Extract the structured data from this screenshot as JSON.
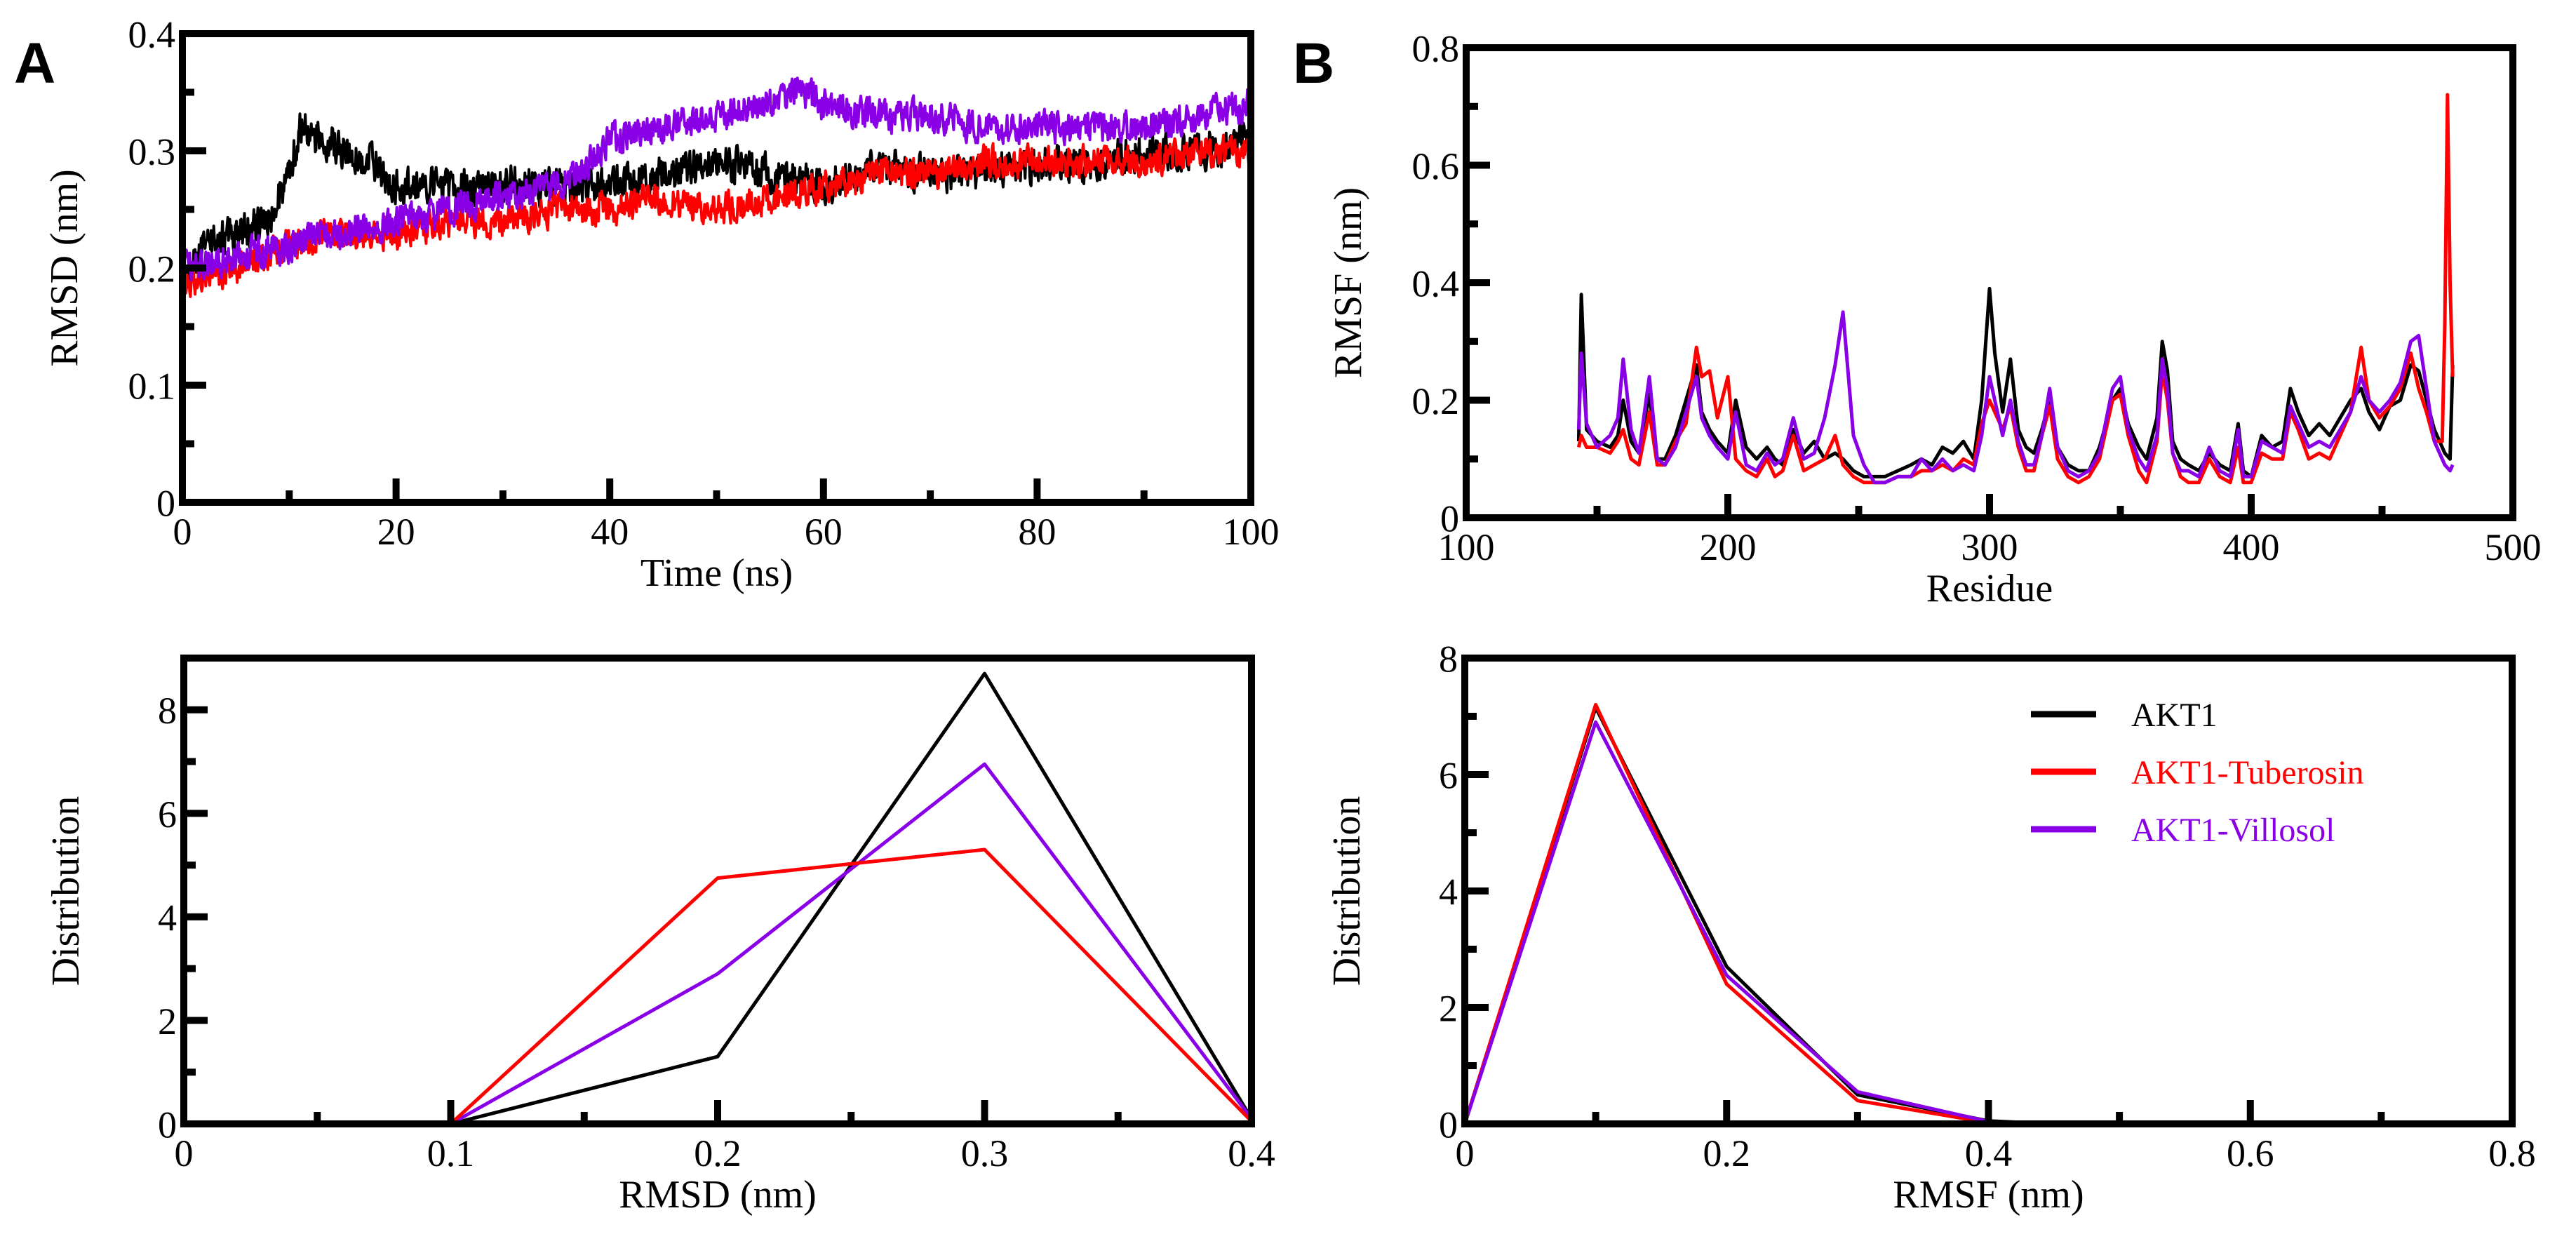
{
  "panel_labels": {
    "a": "A",
    "b": "B"
  },
  "colors": {
    "akt1": "#000000",
    "tuberosin": "#ff0000",
    "villosol": "#8a00e6"
  },
  "legend": {
    "placement": "top-right of lower-right panel",
    "entries": [
      "AKT1",
      "AKT1-Tuberosin",
      "AKT1-Villosol"
    ]
  },
  "chart_data": [
    {
      "id": "rmsd_time",
      "type": "line",
      "title": "",
      "xlabel": "Time (ns)",
      "ylabel": "RMSD (nm)",
      "xlim": [
        0,
        100
      ],
      "ylim": [
        0,
        0.4
      ],
      "xticks": [
        0,
        20,
        40,
        60,
        80,
        100
      ],
      "xtick_labels": [
        "0",
        "20",
        "40",
        "60",
        "80",
        "100"
      ],
      "xminor": [
        10,
        30,
        50,
        70,
        90
      ],
      "yticks": [
        0,
        0.1,
        0.2,
        0.3,
        0.4
      ],
      "ytick_labels": [
        "0",
        "0.1",
        "0.2",
        "0.3",
        "0.4"
      ],
      "yminor": [
        0.05,
        0.15,
        0.25,
        0.35
      ],
      "noise": true,
      "series": [
        {
          "name": "AKT1",
          "x": [
            0,
            2,
            5,
            8,
            10,
            11,
            13,
            15,
            18,
            20,
            22,
            25,
            30,
            35,
            38,
            40,
            45,
            50,
            55,
            60,
            65,
            70,
            75,
            80,
            85,
            90,
            95,
            100
          ],
          "y": [
            0.19,
            0.22,
            0.23,
            0.24,
            0.28,
            0.32,
            0.31,
            0.3,
            0.29,
            0.27,
            0.27,
            0.27,
            0.27,
            0.27,
            0.27,
            0.27,
            0.28,
            0.29,
            0.28,
            0.27,
            0.29,
            0.28,
            0.28,
            0.29,
            0.29,
            0.3,
            0.3,
            0.31
          ],
          "amp": 0.014
        },
        {
          "name": "AKT1-Tuberosin",
          "x": [
            0,
            5,
            10,
            15,
            20,
            25,
            30,
            35,
            40,
            45,
            50,
            55,
            60,
            65,
            70,
            75,
            80,
            85,
            90,
            95,
            100
          ],
          "y": [
            0.19,
            0.2,
            0.22,
            0.23,
            0.23,
            0.24,
            0.24,
            0.25,
            0.25,
            0.26,
            0.25,
            0.26,
            0.27,
            0.28,
            0.28,
            0.29,
            0.29,
            0.29,
            0.29,
            0.3,
            0.3
          ],
          "amp": 0.012
        },
        {
          "name": "AKT1-Villosol",
          "x": [
            0,
            5,
            10,
            15,
            20,
            25,
            30,
            35,
            38,
            40,
            45,
            50,
            55,
            58,
            60,
            65,
            70,
            75,
            80,
            85,
            90,
            95,
            100
          ],
          "y": [
            0.2,
            0.21,
            0.22,
            0.23,
            0.24,
            0.25,
            0.26,
            0.27,
            0.29,
            0.31,
            0.32,
            0.33,
            0.34,
            0.35,
            0.34,
            0.33,
            0.33,
            0.32,
            0.32,
            0.32,
            0.32,
            0.33,
            0.34
          ],
          "amp": 0.012
        }
      ]
    },
    {
      "id": "rmsf_residue",
      "type": "line",
      "title": "",
      "xlabel": "Residue",
      "ylabel": "RMSF (nm)",
      "xlim": [
        100,
        500
      ],
      "ylim": [
        0,
        0.8
      ],
      "xticks": [
        100,
        200,
        300,
        400,
        500
      ],
      "xtick_labels": [
        "100",
        "200",
        "300",
        "400",
        "500"
      ],
      "xminor": [
        150,
        250,
        350,
        450
      ],
      "yticks": [
        0,
        0.2,
        0.4,
        0.6,
        0.8
      ],
      "ytick_labels": [
        "0",
        "0.2",
        "0.4",
        "0.6",
        "0.8"
      ],
      "yminor": [
        0.1,
        0.3,
        0.5,
        0.7
      ],
      "noise": false,
      "series": [
        {
          "name": "AKT1",
          "x": [
            143,
            144,
            146,
            150,
            155,
            158,
            160,
            163,
            166,
            170,
            173,
            176,
            180,
            184,
            188,
            190,
            193,
            196,
            200,
            203,
            207,
            211,
            215,
            218,
            221,
            225,
            229,
            233,
            237,
            241,
            244,
            248,
            252,
            256,
            260,
            265,
            270,
            274,
            278,
            282,
            286,
            290,
            294,
            297,
            300,
            302,
            305,
            308,
            311,
            314,
            317,
            320,
            323,
            326,
            330,
            334,
            338,
            342,
            347,
            350,
            353,
            357,
            360,
            364,
            366,
            368,
            370,
            373,
            376,
            380,
            384,
            388,
            392,
            395,
            397,
            400,
            404,
            408,
            412,
            415,
            418,
            422,
            426,
            430,
            434,
            438,
            442,
            445,
            449,
            453,
            457,
            461,
            464,
            467,
            470,
            473,
            474,
            476,
            477
          ],
          "y": [
            0.13,
            0.38,
            0.15,
            0.13,
            0.12,
            0.14,
            0.2,
            0.13,
            0.11,
            0.21,
            0.1,
            0.1,
            0.14,
            0.2,
            0.26,
            0.18,
            0.15,
            0.13,
            0.11,
            0.2,
            0.12,
            0.1,
            0.12,
            0.1,
            0.09,
            0.15,
            0.11,
            0.13,
            0.1,
            0.11,
            0.1,
            0.08,
            0.07,
            0.07,
            0.07,
            0.08,
            0.09,
            0.1,
            0.09,
            0.12,
            0.11,
            0.13,
            0.1,
            0.2,
            0.39,
            0.28,
            0.18,
            0.27,
            0.15,
            0.12,
            0.11,
            0.15,
            0.2,
            0.12,
            0.09,
            0.08,
            0.08,
            0.12,
            0.2,
            0.22,
            0.16,
            0.12,
            0.1,
            0.17,
            0.3,
            0.25,
            0.13,
            0.1,
            0.09,
            0.08,
            0.11,
            0.09,
            0.08,
            0.16,
            0.08,
            0.07,
            0.14,
            0.12,
            0.13,
            0.22,
            0.18,
            0.14,
            0.16,
            0.14,
            0.17,
            0.2,
            0.22,
            0.18,
            0.15,
            0.19,
            0.2,
            0.26,
            0.25,
            0.2,
            0.15,
            0.12,
            0.11,
            0.1,
            0.26
          ]
        },
        {
          "name": "AKT1-Tuberosin",
          "x": [
            143,
            144,
            146,
            150,
            155,
            158,
            160,
            163,
            166,
            170,
            173,
            176,
            180,
            184,
            188,
            190,
            193,
            196,
            200,
            203,
            207,
            211,
            215,
            218,
            221,
            225,
            229,
            233,
            237,
            241,
            244,
            248,
            252,
            256,
            260,
            265,
            270,
            274,
            278,
            282,
            286,
            290,
            294,
            297,
            300,
            302,
            305,
            308,
            311,
            314,
            317,
            320,
            323,
            326,
            330,
            334,
            338,
            342,
            347,
            350,
            353,
            357,
            360,
            364,
            366,
            368,
            370,
            373,
            376,
            380,
            384,
            388,
            392,
            395,
            397,
            400,
            404,
            408,
            412,
            415,
            418,
            422,
            426,
            430,
            434,
            438,
            442,
            445,
            449,
            453,
            457,
            461,
            464,
            467,
            470,
            473,
            474,
            475,
            476,
            477
          ],
          "y": [
            0.12,
            0.14,
            0.12,
            0.12,
            0.11,
            0.13,
            0.15,
            0.1,
            0.09,
            0.18,
            0.09,
            0.09,
            0.13,
            0.16,
            0.29,
            0.24,
            0.25,
            0.17,
            0.24,
            0.1,
            0.08,
            0.07,
            0.1,
            0.07,
            0.08,
            0.14,
            0.08,
            0.09,
            0.1,
            0.14,
            0.09,
            0.07,
            0.06,
            0.06,
            0.06,
            0.07,
            0.07,
            0.08,
            0.08,
            0.09,
            0.08,
            0.1,
            0.09,
            0.16,
            0.2,
            0.18,
            0.15,
            0.19,
            0.12,
            0.08,
            0.08,
            0.14,
            0.19,
            0.1,
            0.07,
            0.06,
            0.07,
            0.1,
            0.2,
            0.21,
            0.14,
            0.08,
            0.06,
            0.13,
            0.25,
            0.2,
            0.11,
            0.07,
            0.06,
            0.06,
            0.1,
            0.07,
            0.06,
            0.12,
            0.06,
            0.06,
            0.11,
            0.1,
            0.1,
            0.18,
            0.15,
            0.1,
            0.11,
            0.1,
            0.14,
            0.18,
            0.29,
            0.2,
            0.17,
            0.19,
            0.22,
            0.28,
            0.22,
            0.18,
            0.13,
            0.13,
            0.33,
            0.72,
            0.4,
            0.24
          ]
        },
        {
          "name": "AKT1-Villosol",
          "x": [
            143,
            144,
            146,
            150,
            155,
            158,
            160,
            163,
            166,
            170,
            173,
            176,
            180,
            184,
            188,
            190,
            193,
            196,
            200,
            203,
            207,
            211,
            215,
            218,
            221,
            225,
            229,
            233,
            237,
            241,
            244,
            248,
            252,
            256,
            260,
            265,
            270,
            274,
            278,
            282,
            286,
            290,
            294,
            297,
            300,
            302,
            305,
            308,
            311,
            314,
            317,
            320,
            323,
            326,
            330,
            334,
            338,
            342,
            347,
            350,
            353,
            357,
            360,
            364,
            366,
            368,
            370,
            373,
            376,
            380,
            384,
            388,
            392,
            395,
            397,
            400,
            404,
            408,
            412,
            415,
            418,
            422,
            426,
            430,
            434,
            438,
            442,
            445,
            449,
            453,
            457,
            461,
            464,
            467,
            470,
            473,
            474,
            476,
            477
          ],
          "y": [
            0.15,
            0.28,
            0.16,
            0.12,
            0.14,
            0.17,
            0.27,
            0.15,
            0.11,
            0.24,
            0.1,
            0.09,
            0.12,
            0.18,
            0.24,
            0.17,
            0.14,
            0.12,
            0.1,
            0.18,
            0.09,
            0.08,
            0.11,
            0.09,
            0.1,
            0.17,
            0.1,
            0.11,
            0.17,
            0.26,
            0.35,
            0.14,
            0.09,
            0.06,
            0.06,
            0.07,
            0.07,
            0.1,
            0.08,
            0.1,
            0.08,
            0.09,
            0.08,
            0.14,
            0.24,
            0.2,
            0.14,
            0.2,
            0.13,
            0.09,
            0.09,
            0.14,
            0.22,
            0.12,
            0.08,
            0.07,
            0.08,
            0.11,
            0.22,
            0.24,
            0.15,
            0.1,
            0.08,
            0.14,
            0.27,
            0.22,
            0.11,
            0.08,
            0.08,
            0.07,
            0.12,
            0.08,
            0.07,
            0.15,
            0.07,
            0.07,
            0.13,
            0.12,
            0.11,
            0.19,
            0.16,
            0.12,
            0.13,
            0.12,
            0.15,
            0.18,
            0.24,
            0.2,
            0.18,
            0.2,
            0.23,
            0.3,
            0.31,
            0.22,
            0.13,
            0.1,
            0.09,
            0.08,
            0.09
          ]
        }
      ]
    },
    {
      "id": "rmsd_distribution",
      "type": "line",
      "title": "",
      "xlabel": "RMSD (nm)",
      "ylabel": "Distribution",
      "xlim": [
        0,
        0.4
      ],
      "ylim": [
        0,
        9
      ],
      "xticks": [
        0,
        0.1,
        0.2,
        0.3,
        0.4
      ],
      "xtick_labels": [
        "0",
        "0.1",
        "0.2",
        "0.3",
        "0.4"
      ],
      "xminor": [
        0.05,
        0.15,
        0.25,
        0.35
      ],
      "yticks": [
        0,
        2,
        4,
        6,
        8
      ],
      "ytick_labels": [
        "0",
        "2",
        "4",
        "6",
        "8"
      ],
      "yminor": [
        1,
        3,
        5,
        7
      ],
      "noise": false,
      "series": [
        {
          "name": "AKT1",
          "x": [
            0.1,
            0.2,
            0.3,
            0.4
          ],
          "y": [
            0,
            1.3,
            8.7,
            0.1
          ]
        },
        {
          "name": "AKT1-Tuberosin",
          "x": [
            0.1,
            0.2,
            0.3,
            0.4
          ],
          "y": [
            0,
            4.75,
            5.3,
            0.05
          ]
        },
        {
          "name": "AKT1-Villosol",
          "x": [
            0.1,
            0.2,
            0.3,
            0.4
          ],
          "y": [
            0,
            2.9,
            6.95,
            0.1
          ]
        }
      ]
    },
    {
      "id": "rmsf_distribution",
      "type": "line",
      "title": "",
      "xlabel": "RMSF (nm)",
      "ylabel": "Distribution",
      "xlim": [
        0,
        0.8
      ],
      "ylim": [
        0,
        8
      ],
      "xticks": [
        0,
        0.2,
        0.4,
        0.6,
        0.8
      ],
      "xtick_labels": [
        "0",
        "0.2",
        "0.4",
        "0.6",
        "0.8"
      ],
      "xminor": [
        0.1,
        0.3,
        0.5,
        0.7
      ],
      "yticks": [
        0,
        2,
        4,
        6,
        8
      ],
      "ytick_labels": [
        "0",
        "2",
        "4",
        "6",
        "8"
      ],
      "yminor": [
        1,
        3,
        5,
        7
      ],
      "noise": false,
      "series": [
        {
          "name": "AKT1",
          "x": [
            0,
            0.1,
            0.2,
            0.3,
            0.4,
            0.43
          ],
          "y": [
            0,
            7.15,
            2.7,
            0.5,
            0.05,
            0.02
          ]
        },
        {
          "name": "AKT1-Tuberosin",
          "x": [
            0,
            0.1,
            0.2,
            0.3,
            0.4
          ],
          "y": [
            0,
            7.2,
            2.4,
            0.4,
            0.02
          ]
        },
        {
          "name": "AKT1-Villosol",
          "x": [
            0,
            0.1,
            0.2,
            0.3,
            0.4
          ],
          "y": [
            0,
            6.9,
            2.55,
            0.55,
            0.04
          ]
        }
      ]
    }
  ]
}
